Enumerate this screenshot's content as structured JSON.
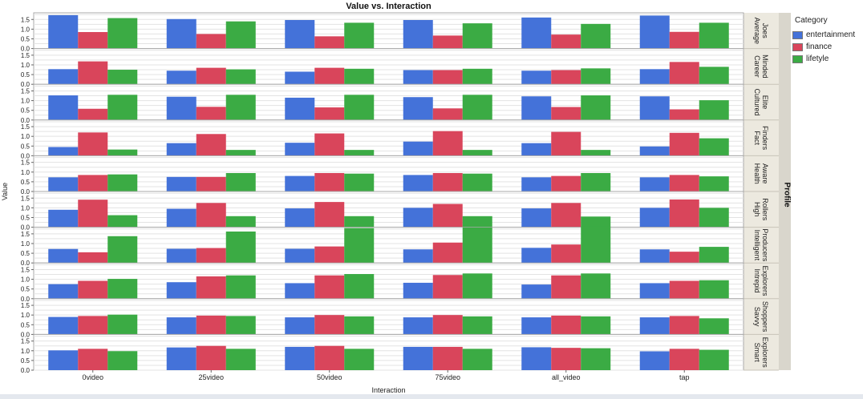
{
  "chart_data": {
    "type": "bar",
    "title": "Value vs. Interaction",
    "xlabel": "Interaction",
    "ylabel": "Value",
    "facet_label": "Profile",
    "ylim": [
      0,
      1.8
    ],
    "yticks": [
      0.0,
      0.5,
      1.0,
      1.5
    ],
    "grid": true,
    "legend_title": "Category",
    "legend_position": "right",
    "categories": [
      "0video",
      "25video",
      "50video",
      "75video",
      "all_video",
      "tap"
    ],
    "series_names": [
      "entertainment",
      "finance",
      "lifetyle"
    ],
    "series_colors": [
      "#4472d9",
      "#d9455b",
      "#3bab44"
    ],
    "panels": [
      {
        "profile": "Average Joes",
        "label_lines": [
          "Average",
          "Joes"
        ],
        "values": {
          "entertainment": [
            1.72,
            1.52,
            1.47,
            1.47,
            1.6,
            1.7
          ],
          "finance": [
            0.85,
            0.75,
            0.63,
            0.67,
            0.72,
            0.86
          ],
          "lifetyle": [
            1.57,
            1.4,
            1.33,
            1.3,
            1.27,
            1.33
          ]
        }
      },
      {
        "profile": "Career Minded",
        "label_lines": [
          "Career",
          "Minded"
        ],
        "values": {
          "entertainment": [
            0.78,
            0.7,
            0.65,
            0.73,
            0.7,
            0.78
          ],
          "finance": [
            1.18,
            0.85,
            0.85,
            0.73,
            0.73,
            1.15
          ],
          "lifetyle": [
            0.75,
            0.77,
            0.8,
            0.8,
            0.82,
            0.9
          ]
        }
      },
      {
        "profile": "Cultured Elite",
        "label_lines": [
          "Cultured",
          "Elite"
        ],
        "values": {
          "entertainment": [
            1.27,
            1.2,
            1.15,
            1.18,
            1.22,
            1.22
          ],
          "finance": [
            0.58,
            0.68,
            0.65,
            0.6,
            0.67,
            0.55
          ],
          "lifetyle": [
            1.3,
            1.3,
            1.3,
            1.3,
            1.27,
            1.02
          ]
        }
      },
      {
        "profile": "Fact Finders",
        "label_lines": [
          "Fact",
          "Finders"
        ],
        "values": {
          "entertainment": [
            0.45,
            0.65,
            0.67,
            0.73,
            0.65,
            0.48
          ],
          "finance": [
            1.2,
            1.12,
            1.15,
            1.27,
            1.23,
            1.18
          ],
          "lifetyle": [
            0.32,
            0.3,
            0.3,
            0.3,
            0.3,
            0.9
          ]
        }
      },
      {
        "profile": "Health Aware",
        "label_lines": [
          "Health",
          "Aware"
        ],
        "values": {
          "entertainment": [
            0.73,
            0.75,
            0.8,
            0.85,
            0.73,
            0.73
          ],
          "finance": [
            0.85,
            0.75,
            0.95,
            0.95,
            0.8,
            0.85
          ],
          "lifetyle": [
            0.88,
            0.95,
            0.92,
            0.92,
            0.95,
            0.78
          ]
        }
      },
      {
        "profile": "High Rollers",
        "label_lines": [
          "High",
          "Rollers"
        ],
        "values": {
          "entertainment": [
            0.9,
            0.95,
            0.97,
            1.0,
            0.97,
            1.0
          ],
          "finance": [
            1.42,
            1.25,
            1.3,
            1.2,
            1.25,
            1.43
          ],
          "lifetyle": [
            0.62,
            0.57,
            0.57,
            0.57,
            0.55,
            1.0
          ]
        }
      },
      {
        "profile": "Intelligent Producers",
        "label_lines": [
          "Intelligent",
          "Producers"
        ],
        "values": {
          "entertainment": [
            0.72,
            0.73,
            0.73,
            0.7,
            0.78,
            0.7
          ],
          "finance": [
            0.55,
            0.77,
            0.85,
            1.05,
            0.95,
            0.58
          ],
          "lifetyle": [
            1.38,
            1.62,
            1.8,
            1.83,
            1.87,
            0.83
          ]
        }
      },
      {
        "profile": "Intrepid Explorers",
        "label_lines": [
          "Intrepid",
          "Explorers"
        ],
        "values": {
          "entertainment": [
            0.75,
            0.85,
            0.8,
            0.82,
            0.73,
            0.8
          ],
          "finance": [
            0.92,
            1.15,
            1.2,
            1.22,
            1.2,
            0.92
          ],
          "lifetyle": [
            1.02,
            1.2,
            1.27,
            1.3,
            1.3,
            0.95
          ]
        }
      },
      {
        "profile": "Savvy Shoppers",
        "label_lines": [
          "Savvy",
          "Shoppers"
        ],
        "values": {
          "entertainment": [
            0.9,
            0.88,
            0.88,
            0.88,
            0.88,
            0.88
          ],
          "finance": [
            0.95,
            0.97,
            1.0,
            1.0,
            0.97,
            0.95
          ],
          "lifetyle": [
            1.02,
            0.95,
            0.93,
            0.93,
            0.93,
            0.83
          ]
        }
      },
      {
        "profile": "Smart Explorers",
        "label_lines": [
          "Smart",
          "Explorers"
        ],
        "values": {
          "entertainment": [
            1.02,
            1.17,
            1.2,
            1.2,
            1.18,
            0.97
          ],
          "finance": [
            1.1,
            1.25,
            1.25,
            1.2,
            1.15,
            1.1
          ],
          "lifetyle": [
            0.98,
            1.1,
            1.1,
            1.1,
            1.13,
            1.05
          ]
        }
      }
    ]
  }
}
